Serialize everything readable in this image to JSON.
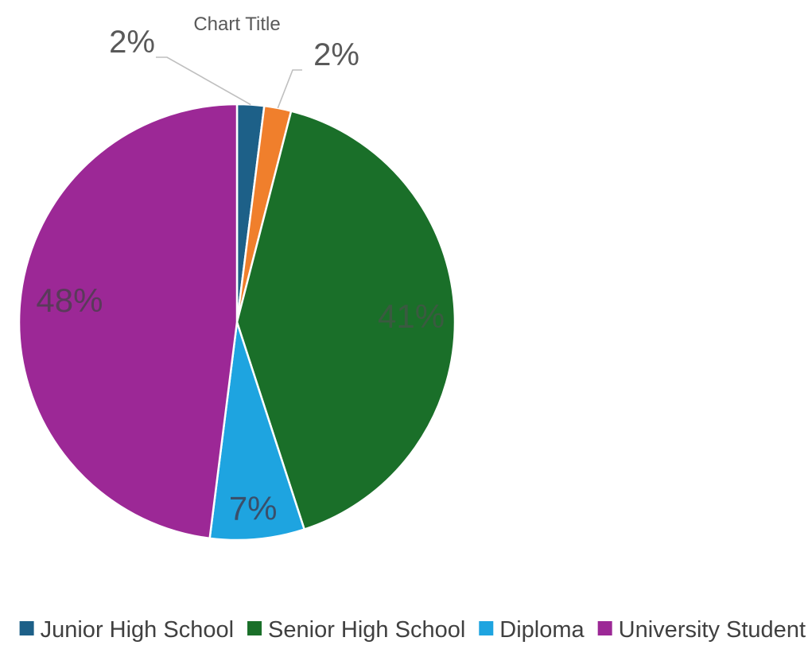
{
  "chart_data": {
    "type": "pie",
    "title": "Chart Title",
    "categories": [
      "Junior High School",
      "Senior High School",
      "Diploma",
      "University Student"
    ],
    "values": [
      2,
      41,
      7,
      48
    ],
    "data_labels": [
      "2%",
      "41%",
      "7%",
      "48%"
    ],
    "colors": [
      "#1d6088",
      "#1a6f29",
      "#1ea4e0",
      "#9c2896"
    ],
    "legend_position": "bottom",
    "start_angle_deg": 0,
    "direction": "clockwise"
  },
  "extra_slice": {
    "label": "2%",
    "value": 2,
    "color": "#f07f2c"
  }
}
